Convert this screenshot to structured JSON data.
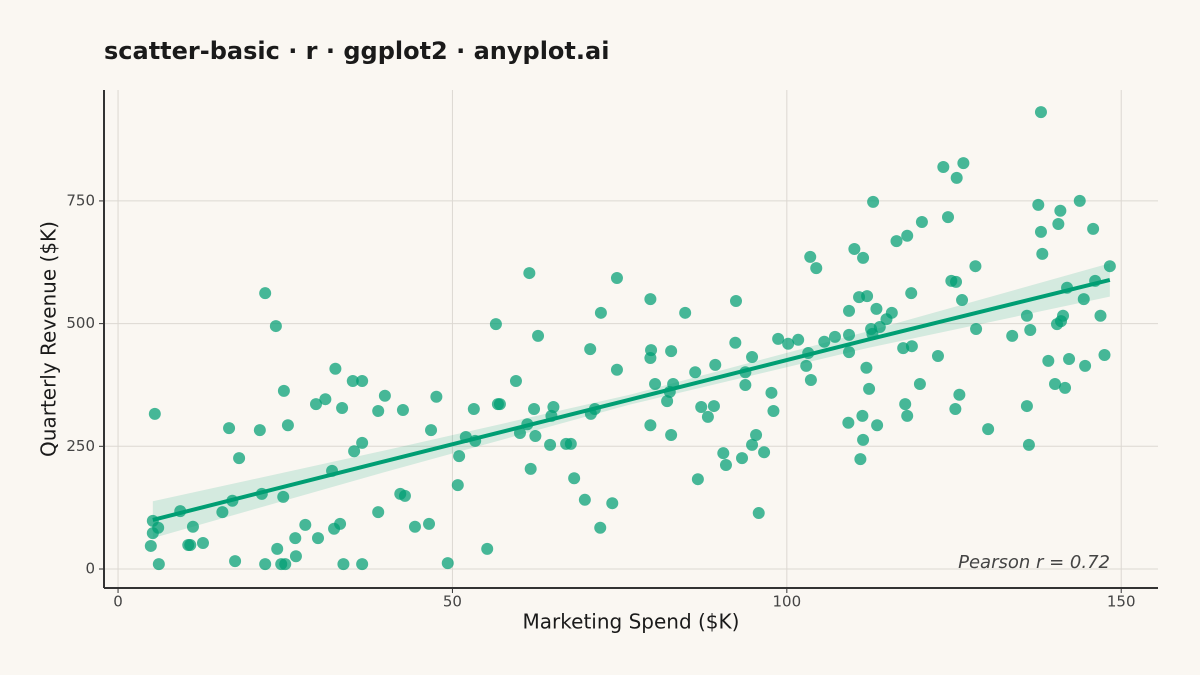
{
  "chart_data": {
    "type": "scatter",
    "title": "scatter-basic · r · ggplot2 · anyplot.ai",
    "x_label": "Marketing Spend ($K)",
    "y_label": "Quarterly Revenue ($K)",
    "annotation": "Pearson r = 0.72",
    "color": "#009e73",
    "grid": true,
    "xlim": [
      -2.1,
      155.5
    ],
    "ylim": [
      -38.7,
      976
    ],
    "xticks": [
      0,
      50,
      100,
      150
    ],
    "yticks": [
      0,
      250,
      500,
      750
    ],
    "x": [
      5.5,
      5.2,
      5.2,
      4.9,
      6.1,
      6.0,
      9.3,
      10.5,
      10.8,
      11.2,
      12.7,
      15.6,
      16.6,
      17.1,
      17.5,
      18.1,
      21.2,
      21.5,
      22,
      22,
      23.6,
      23.8,
      24.4,
      24.7,
      24.8,
      25,
      25.4,
      26.5,
      26.6,
      28,
      29.6,
      29.9,
      31,
      32,
      32.3,
      32.5,
      33.2,
      33.5,
      33.7,
      35.1,
      35.3,
      36.5,
      36.5,
      36.5,
      38.9,
      38.9,
      39.9,
      42.2,
      42.6,
      42.9,
      44.4,
      46.5,
      46.8,
      47.6,
      49.3,
      50.8,
      51,
      52,
      53.2,
      53.4,
      55.2,
      56.5,
      56.8,
      57.1,
      59.5,
      60.1,
      61.2,
      61.5,
      61.7,
      62.2,
      62.4,
      62.8,
      64.6,
      64.8,
      65.1,
      67,
      67.7,
      68.2,
      69.8,
      70.6,
      70.7,
      71.3,
      72.1,
      72.2,
      73.9,
      74.6,
      74.6,
      79.6,
      79.6,
      79.6,
      79.7,
      80.3,
      82.1,
      82.5,
      82.7,
      82.7,
      83,
      84.8,
      86.3,
      86.7,
      87.2,
      88.2,
      89.1,
      89.3,
      90.5,
      90.9,
      92.3,
      92.4,
      93.3,
      93.8,
      93.8,
      94.8,
      94.8,
      95.4,
      95.8,
      96.6,
      97.7,
      98,
      98.7,
      100.2,
      101.7,
      102.9,
      103.2,
      103.5,
      103.6,
      104.4,
      105.6,
      107.2,
      109.2,
      109.3,
      109.3,
      109.3,
      110.1,
      110.8,
      111,
      111.3,
      111.4,
      111.4,
      111.9,
      112,
      112.3,
      112.6,
      112.8,
      112.9,
      113.4,
      113.5,
      113.9,
      114.9,
      115.7,
      116.4,
      117.4,
      117.7,
      118,
      118,
      118.6,
      118.7,
      119.9,
      120.2,
      122.6,
      123.4,
      124.1,
      124.6,
      125.2,
      125.3,
      125.4,
      125.8,
      126.2,
      126.4,
      128.2,
      128.3,
      130.1,
      133.7,
      135.9,
      135.9,
      136.2,
      136.4,
      137.6,
      138,
      138,
      138.2,
      139.1,
      140.1,
      140.4,
      140.6,
      140.9,
      141,
      141.3,
      141.6,
      141.9,
      142.2,
      143.8,
      144.4,
      144.6,
      145.8,
      146.1,
      146.9,
      147.5,
      148.3
    ],
    "values": [
      316,
      98,
      73,
      47,
      10,
      84,
      118,
      49,
      49,
      86,
      53,
      116,
      287,
      139,
      16,
      226,
      283,
      153,
      562,
      10,
      495,
      41,
      10,
      147,
      363,
      10,
      293,
      63,
      26,
      90,
      336,
      63,
      346,
      200,
      82,
      408,
      92,
      328,
      10,
      383,
      240,
      383,
      257,
      10,
      322,
      116,
      353,
      153,
      324,
      149,
      86,
      92,
      283,
      351,
      12,
      171,
      230,
      269,
      326,
      261,
      41,
      499,
      336,
      336,
      383,
      277,
      295,
      603,
      204,
      326,
      271,
      475,
      253,
      312,
      330,
      255,
      255,
      185,
      141,
      448,
      316,
      326,
      84,
      522,
      134,
      406,
      593,
      550,
      293,
      430,
      446,
      377,
      342,
      361,
      273,
      444,
      377,
      522,
      401,
      183,
      330,
      310,
      332,
      416,
      236,
      212,
      461,
      546,
      226,
      401,
      375,
      432,
      253,
      273,
      114,
      238,
      359,
      322,
      469,
      459,
      467,
      414,
      440,
      636,
      385,
      613,
      463,
      473,
      298,
      477,
      442,
      526,
      652,
      554,
      224,
      312,
      263,
      634,
      410,
      556,
      367,
      489,
      479,
      748,
      530,
      293,
      493,
      509,
      522,
      668,
      450,
      336,
      679,
      312,
      562,
      454,
      377,
      707,
      434,
      819,
      717,
      587,
      326,
      585,
      797,
      355,
      548,
      827,
      617,
      489,
      285,
      475,
      516,
      332,
      253,
      487,
      742,
      687,
      931,
      642,
      424,
      377,
      499,
      703,
      730,
      505,
      516,
      369,
      573,
      428,
      750,
      550,
      414,
      693,
      587,
      516,
      436,
      617
    ],
    "trend": {
      "color": "#009e73",
      "x": [
        5.2,
        40,
        76.5,
        112,
        148.3
      ],
      "y": [
        100,
        220,
        345,
        467,
        589
      ],
      "lower": [
        63,
        198,
        335,
        450,
        555
      ],
      "upper": [
        138,
        242,
        355,
        484,
        623
      ]
    }
  }
}
